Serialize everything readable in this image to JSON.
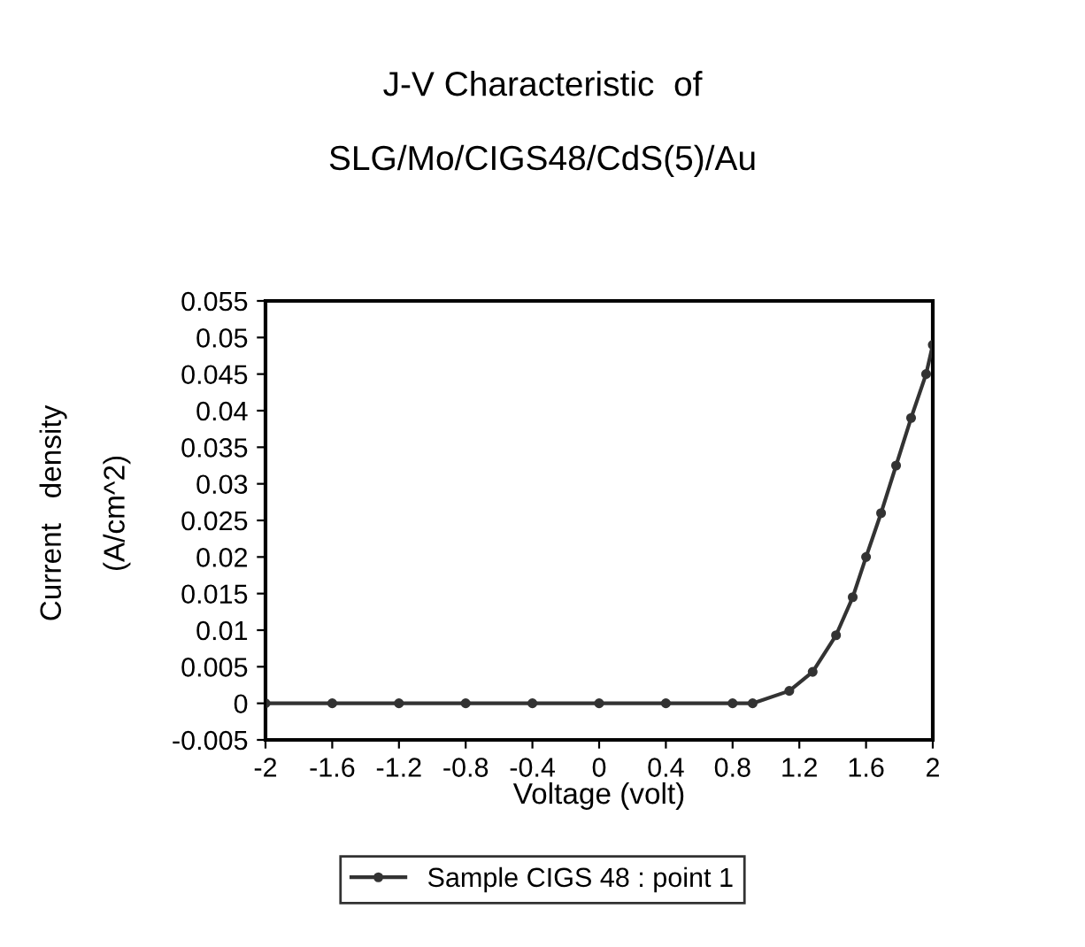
{
  "chart_data": {
    "type": "line",
    "title": "J-V Characteristic  of\n\nSLG/Mo/CIGS48/CdS(5)/Au",
    "xlabel": "Voltage (volt)",
    "ylabel": "Current   density\n\n(A/cm^2)",
    "x": [
      -2,
      -1.6,
      -1.2,
      -0.8,
      -0.4,
      0,
      0.4,
      0.8,
      0.92,
      1.14,
      1.28,
      1.42,
      1.52,
      1.6,
      1.69,
      1.78,
      1.87,
      1.96,
      2
    ],
    "series": [
      {
        "name": "Sample CIGS 48 : point 1",
        "color": "#333333",
        "values": [
          0,
          0,
          0,
          0,
          0,
          0,
          0,
          0,
          0,
          0.0017,
          0.0043,
          0.0093,
          0.0145,
          0.02,
          0.026,
          0.0325,
          0.039,
          0.045,
          0.049
        ]
      }
    ],
    "xlim": [
      -2,
      2
    ],
    "xticks": [
      -2,
      -1.6,
      -1.2,
      -0.8,
      -0.4,
      0,
      0.4,
      0.8,
      1.2,
      1.6,
      2
    ],
    "ylim": [
      -0.005,
      0.055
    ],
    "yticks": [
      -0.005,
      0,
      0.005,
      0.01,
      0.015,
      0.02,
      0.025,
      0.03,
      0.035,
      0.04,
      0.045,
      0.05,
      0.055
    ],
    "legend": "bottom",
    "marker": "circle",
    "line_style": "solid",
    "grid": false
  }
}
